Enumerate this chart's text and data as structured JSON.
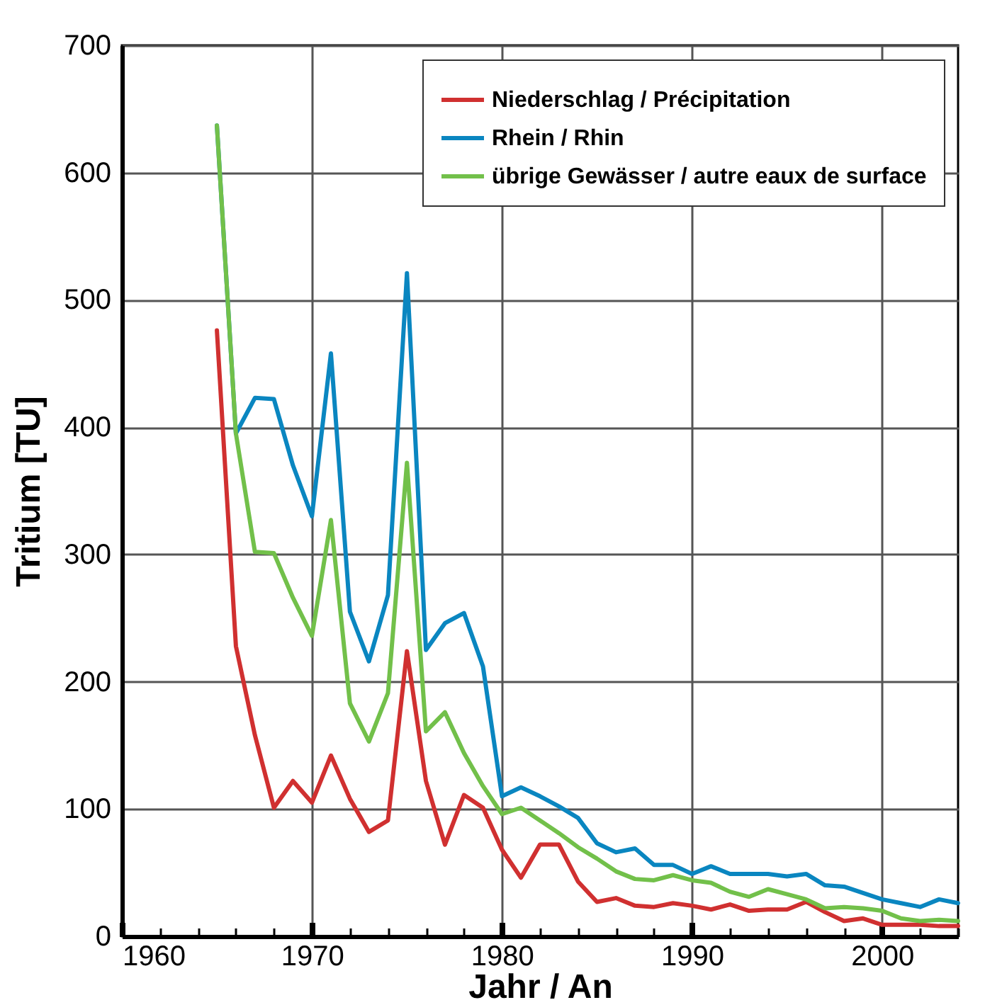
{
  "chart_data": {
    "type": "line",
    "xlabel": "Jahr / An",
    "ylabel": "Tritium [TU]",
    "x": [
      1965,
      1966,
      1967,
      1968,
      1969,
      1970,
      1971,
      1972,
      1973,
      1974,
      1975,
      1976,
      1977,
      1978,
      1979,
      1980,
      1981,
      1982,
      1983,
      1984,
      1985,
      1986,
      1987,
      1988,
      1989,
      1990,
      1991,
      1992,
      1993,
      1994,
      1995,
      1996,
      1997,
      1998,
      1999,
      2000,
      2001,
      2002,
      2003,
      2004
    ],
    "series": [
      {
        "name": "Niederschlag / Précipitation",
        "color": "#d03030",
        "values": [
          476,
          228,
          158,
          101,
          122,
          105,
          142,
          108,
          82,
          91,
          224,
          122,
          72,
          111,
          101,
          68,
          46,
          72,
          72,
          43,
          27,
          30,
          24,
          23,
          26,
          24,
          21,
          25,
          20,
          21,
          21,
          27,
          19,
          12,
          14,
          9,
          9,
          9,
          8,
          8
        ]
      },
      {
        "name": "Rhein / Rhin",
        "color": "#0a86c0",
        "values": [
          637,
          395,
          423,
          422,
          370,
          330,
          458,
          255,
          216,
          268,
          521,
          225,
          246,
          254,
          212,
          110,
          117,
          110,
          102,
          93,
          73,
          66,
          69,
          56,
          56,
          49,
          55,
          49,
          49,
          49,
          47,
          49,
          40,
          39,
          34,
          29,
          26,
          23,
          29,
          26
        ]
      },
      {
        "name": "übrige Gewässer / autre eaux de surface",
        "color": "#72c04a",
        "values": [
          637,
          395,
          302,
          301,
          266,
          236,
          327,
          183,
          153,
          191,
          372,
          161,
          176,
          144,
          118,
          96,
          101,
          91,
          81,
          70,
          61,
          51,
          45,
          44,
          48,
          44,
          42,
          35,
          31,
          37,
          33,
          29,
          22,
          23,
          22,
          20,
          14,
          12,
          13,
          12
        ]
      }
    ],
    "xlim": [
      1960,
      2004
    ],
    "xticks": [
      1960,
      {
        "value": 1962,
        "label": null
      },
      {
        "value": 1964,
        "label": null
      },
      {
        "value": 1966,
        "label": null
      },
      {
        "value": 1968,
        "label": null
      },
      1970,
      {
        "value": 1972,
        "label": null
      },
      {
        "value": 1974,
        "label": null
      },
      {
        "value": 1976,
        "label": null
      },
      {
        "value": 1978,
        "label": null
      },
      1980,
      {
        "value": 1982,
        "label": null
      },
      {
        "value": 1984,
        "label": null
      },
      {
        "value": 1986,
        "label": null
      },
      {
        "value": 1988,
        "label": null
      },
      1990,
      {
        "value": 1992,
        "label": null
      },
      {
        "value": 1994,
        "label": null
      },
      {
        "value": 1996,
        "label": null
      },
      {
        "value": 1998,
        "label": null
      },
      2000,
      {
        "value": 2002,
        "label": null
      },
      {
        "value": 2004,
        "label": null
      }
    ],
    "ylim": [
      0,
      700
    ],
    "yticks": [
      0,
      100,
      200,
      300,
      400,
      500,
      600,
      700
    ],
    "grid": true,
    "legend": "top right",
    "line_style": "solid"
  }
}
